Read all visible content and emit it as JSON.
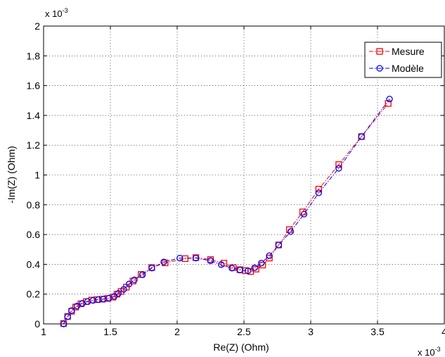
{
  "chart_data": {
    "type": "line",
    "title": "",
    "xlabel": "Re(Z) (Ohm)",
    "ylabel": "-Im(Z) (Ohm)",
    "x_multiplier": "x 10",
    "x_exponent": "-3",
    "y_multiplier": "x 10",
    "y_exponent": "-3",
    "xlim": [
      1,
      4
    ],
    "ylim": [
      0,
      2
    ],
    "xticks": [
      1,
      1.5,
      2,
      2.5,
      3,
      3.5,
      4
    ],
    "xtick_labels": [
      "1",
      "1.5",
      "2",
      "2.5",
      "3",
      "3.5",
      "4"
    ],
    "yticks": [
      0,
      0.2,
      0.4,
      0.6,
      0.8,
      1,
      1.2,
      1.4,
      1.6,
      1.8,
      2
    ],
    "ytick_labels": [
      "0",
      "0.2",
      "0.4",
      "0.6",
      "0.8",
      "1",
      "1.2",
      "1.4",
      "1.6",
      "1.8",
      "2"
    ],
    "grid": true,
    "legend_position": "top-right",
    "series": [
      {
        "name": "Mesure",
        "color": "#ff0000",
        "marker": "square",
        "line_style": "dash-dot",
        "points": [
          [
            1.15,
            0.003
          ],
          [
            1.18,
            0.05
          ],
          [
            1.21,
            0.085
          ],
          [
            1.24,
            0.113
          ],
          [
            1.28,
            0.135
          ],
          [
            1.32,
            0.15
          ],
          [
            1.36,
            0.16
          ],
          [
            1.4,
            0.163
          ],
          [
            1.44,
            0.166
          ],
          [
            1.48,
            0.171
          ],
          [
            1.52,
            0.18
          ],
          [
            1.55,
            0.2
          ],
          [
            1.58,
            0.218
          ],
          [
            1.62,
            0.247
          ],
          [
            1.67,
            0.288
          ],
          [
            1.73,
            0.332
          ],
          [
            1.81,
            0.378
          ],
          [
            1.91,
            0.41
          ],
          [
            2.06,
            0.438
          ],
          [
            2.14,
            0.445
          ],
          [
            2.25,
            0.432
          ],
          [
            2.35,
            0.408
          ],
          [
            2.42,
            0.378
          ],
          [
            2.47,
            0.364
          ],
          [
            2.51,
            0.358
          ],
          [
            2.55,
            0.352
          ],
          [
            2.59,
            0.368
          ],
          [
            2.64,
            0.395
          ],
          [
            2.69,
            0.442
          ],
          [
            2.76,
            0.53
          ],
          [
            2.84,
            0.633
          ],
          [
            2.94,
            0.752
          ],
          [
            3.06,
            0.905
          ],
          [
            3.21,
            1.07
          ],
          [
            3.38,
            1.258
          ],
          [
            3.58,
            1.48
          ]
        ]
      },
      {
        "name": "Modèle",
        "color": "#0000ff",
        "marker": "circle",
        "line_style": "dash-dot",
        "points": [
          [
            1.15,
            0.0
          ],
          [
            1.18,
            0.048
          ],
          [
            1.21,
            0.09
          ],
          [
            1.25,
            0.12
          ],
          [
            1.29,
            0.138
          ],
          [
            1.33,
            0.15
          ],
          [
            1.37,
            0.158
          ],
          [
            1.41,
            0.163
          ],
          [
            1.45,
            0.167
          ],
          [
            1.49,
            0.173
          ],
          [
            1.53,
            0.185
          ],
          [
            1.56,
            0.205
          ],
          [
            1.6,
            0.232
          ],
          [
            1.64,
            0.268
          ],
          [
            1.68,
            0.296
          ],
          [
            1.74,
            0.33
          ],
          [
            1.81,
            0.375
          ],
          [
            1.9,
            0.416
          ],
          [
            2.02,
            0.442
          ],
          [
            2.14,
            0.442
          ],
          [
            2.25,
            0.424
          ],
          [
            2.33,
            0.398
          ],
          [
            2.41,
            0.374
          ],
          [
            2.47,
            0.362
          ],
          [
            2.53,
            0.357
          ],
          [
            2.58,
            0.377
          ],
          [
            2.63,
            0.408
          ],
          [
            2.69,
            0.458
          ],
          [
            2.76,
            0.53
          ],
          [
            2.85,
            0.62
          ],
          [
            2.95,
            0.737
          ],
          [
            3.06,
            0.88
          ],
          [
            3.21,
            1.045
          ],
          [
            3.38,
            1.257
          ],
          [
            3.59,
            1.51
          ]
        ]
      }
    ]
  }
}
